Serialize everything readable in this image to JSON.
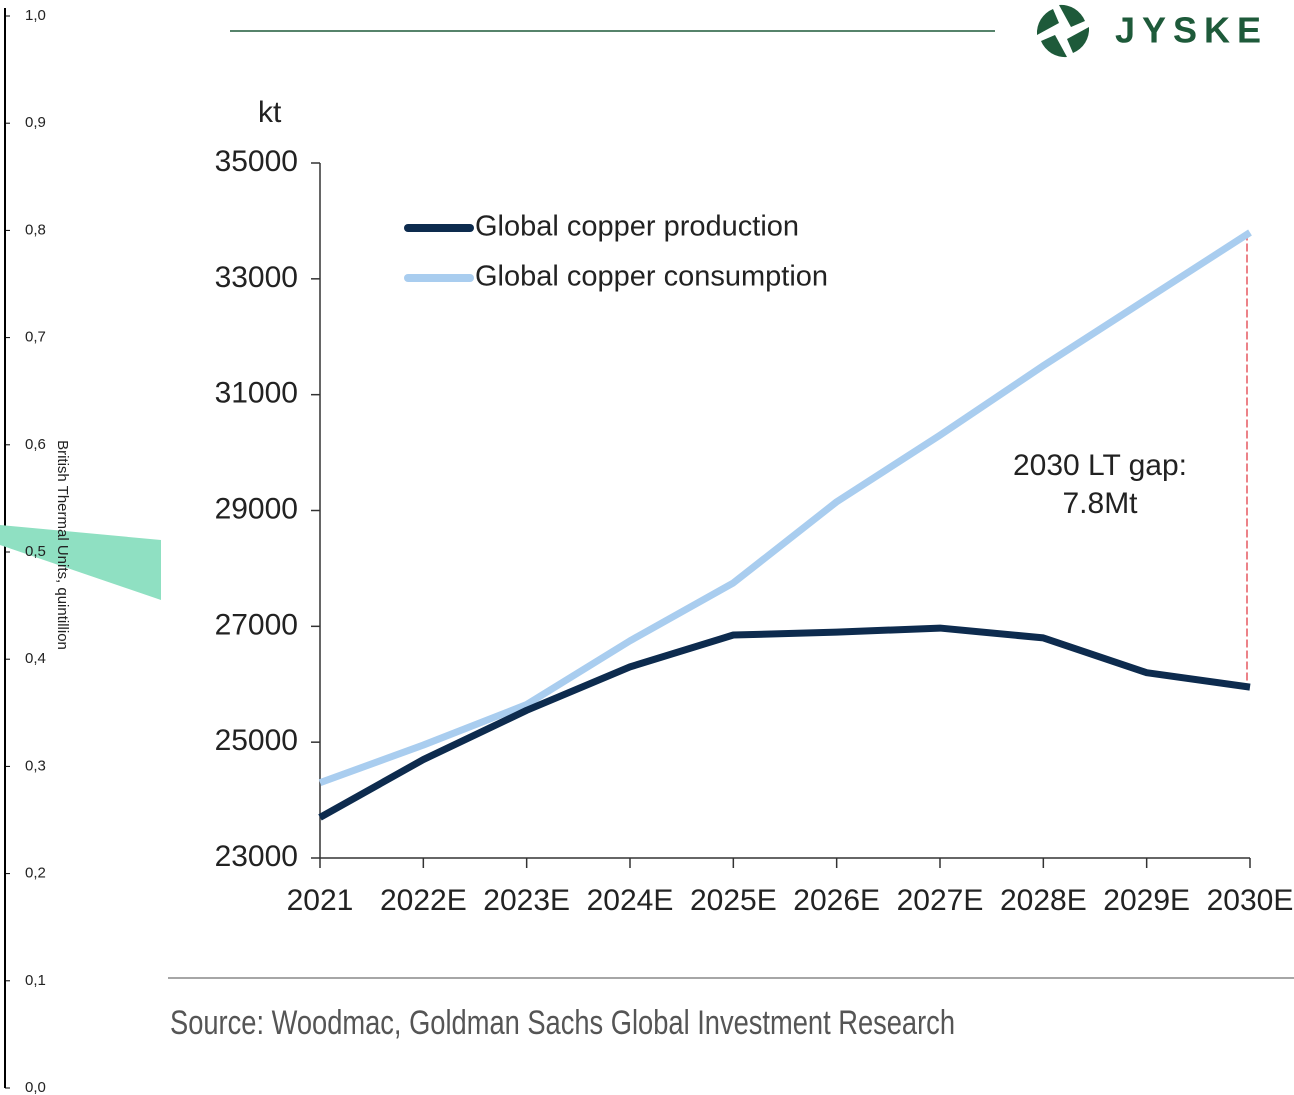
{
  "logo": "JYSKE",
  "side_axis": {
    "label": "British Thermal Units, quintillion",
    "ticks": [
      {
        "value": 1.0,
        "label": "1,0"
      },
      {
        "value": 0.9,
        "label": "0,9"
      },
      {
        "value": 0.8,
        "label": "0,8"
      },
      {
        "value": 0.7,
        "label": "0,7"
      },
      {
        "value": 0.6,
        "label": "0,6"
      },
      {
        "value": 0.5,
        "label": "0,5"
      },
      {
        "value": 0.4,
        "label": "0,4"
      },
      {
        "value": 0.3,
        "label": "0,3"
      },
      {
        "value": 0.2,
        "label": "0,2"
      },
      {
        "value": 0.1,
        "label": "0,1"
      },
      {
        "value": 0.0,
        "label": "0,0"
      }
    ],
    "lim": [
      0,
      1
    ]
  },
  "chart_data": {
    "type": "line",
    "y_label": "kt",
    "categories": [
      "2021",
      "2022E",
      "2023E",
      "2024E",
      "2025E",
      "2026E",
      "2027E",
      "2028E",
      "2029E",
      "2030E"
    ],
    "series": [
      {
        "name": "Global copper production",
        "color": "#0d2b4e",
        "values": [
          23700,
          24700,
          25550,
          26300,
          26850,
          26900,
          26970,
          26800,
          26200,
          25950
        ]
      },
      {
        "name": "Global copper consumption",
        "color": "#a9cdef",
        "values": [
          24300,
          24950,
          25650,
          26750,
          27750,
          29150,
          30300,
          31500,
          32650,
          33800
        ]
      }
    ],
    "ylim": [
      23000,
      35000
    ],
    "yticks": [
      23000,
      25000,
      27000,
      29000,
      31000,
      33000,
      35000
    ],
    "annotation": [
      "2030 LT gap:",
      "7.8Mt"
    ],
    "gap_color": "#e0303a",
    "source": "Source: Woodmac, Goldman Sachs Global Investment Research"
  }
}
